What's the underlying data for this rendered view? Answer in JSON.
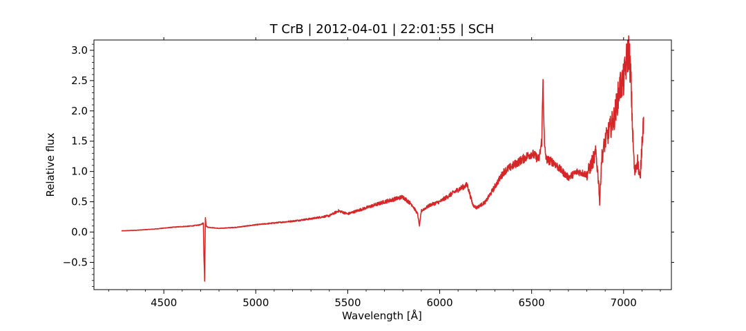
{
  "chart_data": {
    "type": "line",
    "title": "T CrB | 2012-04-01 | 22:01:55 | SCH",
    "xlabel": "Wavelength [Å]",
    "ylabel": "Relative flux",
    "xlim": [
      4120,
      7260
    ],
    "ylim": [
      -0.95,
      3.17
    ],
    "xticks": [
      4500,
      5000,
      5500,
      6000,
      6500,
      7000
    ],
    "xtick_labels": [
      "4500",
      "5000",
      "5500",
      "6000",
      "6500",
      "7000"
    ],
    "yticks": [
      -0.5,
      0.0,
      0.5,
      1.0,
      1.5,
      2.0,
      2.5,
      3.0
    ],
    "ytick_labels": [
      "−0.5",
      "0.0",
      "0.5",
      "1.0",
      "1.5",
      "2.0",
      "2.5",
      "3.0"
    ],
    "grid": false,
    "line_color": "#d62728",
    "series": [
      {
        "x": [
          4270,
          4350,
          4450,
          4550,
          4650,
          4700,
          4715,
          4718,
          4722,
          4726,
          4730,
          4740,
          4800,
          4900,
          5000,
          5100,
          5200,
          5300,
          5400,
          5450,
          5500,
          5600,
          5700,
          5800,
          5850,
          5880,
          5890,
          5900,
          5950,
          6000,
          6050,
          6100,
          6150,
          6180,
          6200,
          6250,
          6300,
          6350,
          6400,
          6450,
          6500,
          6540,
          6555,
          6562,
          6570,
          6580,
          6620,
          6650,
          6700,
          6750,
          6800,
          6850,
          6865,
          6870,
          6880,
          6900,
          6950,
          6980,
          7000,
          7020,
          7030,
          7040,
          7050,
          7060,
          7075,
          7090,
          7100,
          7110
        ],
        "y": [
          0.02,
          0.03,
          0.05,
          0.08,
          0.1,
          0.12,
          0.15,
          -0.4,
          -0.77,
          0.25,
          0.1,
          0.08,
          0.06,
          0.08,
          0.12,
          0.15,
          0.18,
          0.22,
          0.27,
          0.35,
          0.3,
          0.4,
          0.5,
          0.58,
          0.45,
          0.3,
          0.1,
          0.35,
          0.45,
          0.5,
          0.6,
          0.7,
          0.78,
          0.45,
          0.4,
          0.5,
          0.75,
          1.0,
          1.1,
          1.2,
          1.3,
          1.2,
          1.5,
          2.5,
          1.4,
          1.2,
          1.15,
          1.05,
          0.9,
          1.0,
          0.95,
          1.3,
          0.8,
          0.47,
          1.2,
          1.5,
          1.9,
          2.4,
          2.5,
          2.9,
          3.0,
          2.5,
          1.6,
          0.95,
          1.2,
          0.85,
          1.5,
          1.9
        ]
      }
    ]
  }
}
